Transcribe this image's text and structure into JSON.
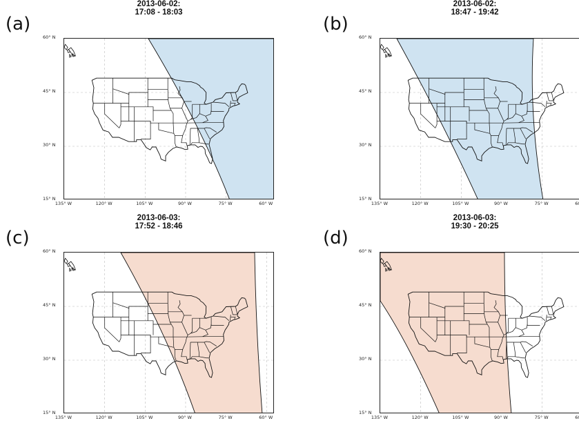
{
  "panels": [
    {
      "letter": "(a)",
      "title_line1": "2013-06-02:",
      "title_line2": "17:08 - 18:03",
      "swath_color": "#cfe3f1"
    },
    {
      "letter": "(b)",
      "title_line1": "2013-06-02:",
      "title_line2": "18:47 - 19:42",
      "swath_color": "#cfe3f1"
    },
    {
      "letter": "(c)",
      "title_line1": "2013-06-03:",
      "title_line2": "17:52 - 18:46",
      "swath_color": "#f6dccf"
    },
    {
      "letter": "(d)",
      "title_line1": "2013-06-03:",
      "title_line2": "19:30 - 20:25",
      "swath_color": "#f6dccf"
    }
  ],
  "lat_labels": [
    "60° N",
    "45° N",
    "30° N",
    "15° N"
  ],
  "lon_labels": [
    "135° W",
    "120° W",
    "105° W",
    "90° W",
    "75° W",
    "60° W"
  ]
}
